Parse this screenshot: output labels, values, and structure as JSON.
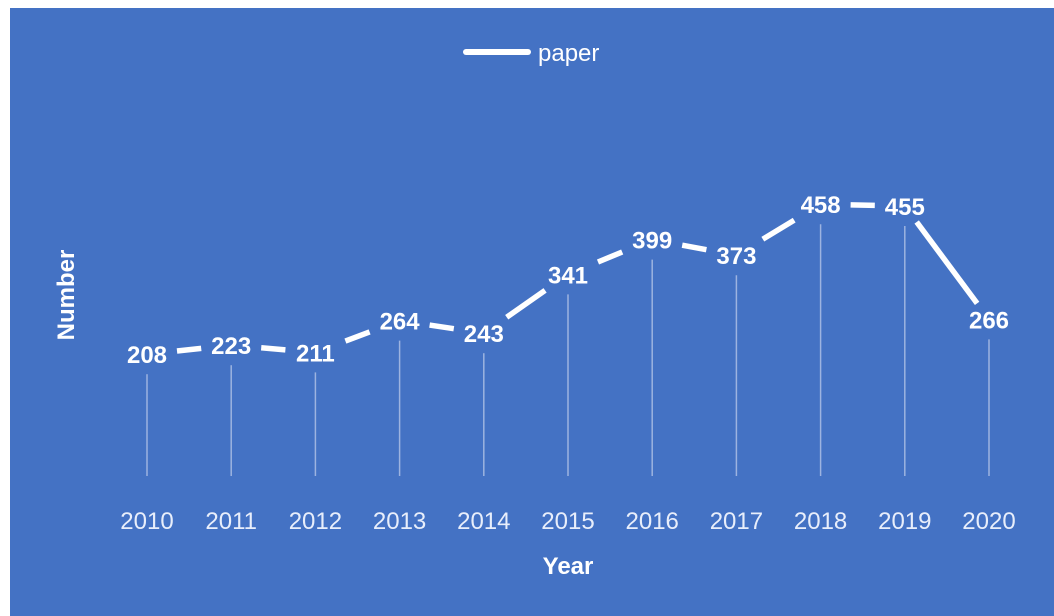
{
  "colors": {
    "background": "#4472c4",
    "line": "#ffffff",
    "drop_line": "#9db3e0",
    "text": "#ffffff"
  },
  "chart_data": {
    "type": "line",
    "title": "",
    "xlabel": "Year",
    "ylabel": "Number",
    "x": [
      "2010",
      "2011",
      "2012",
      "2013",
      "2014",
      "2015",
      "2016",
      "2017",
      "2018",
      "2019",
      "2020"
    ],
    "series": [
      {
        "name": "paper",
        "values": [
          208,
          223,
          211,
          264,
          243,
          341,
          399,
          373,
          458,
          455,
          266
        ]
      }
    ],
    "ylim": [
      0,
      500
    ],
    "grid": false,
    "drop_lines": true,
    "data_labels": true,
    "legend_position": "top-center"
  }
}
